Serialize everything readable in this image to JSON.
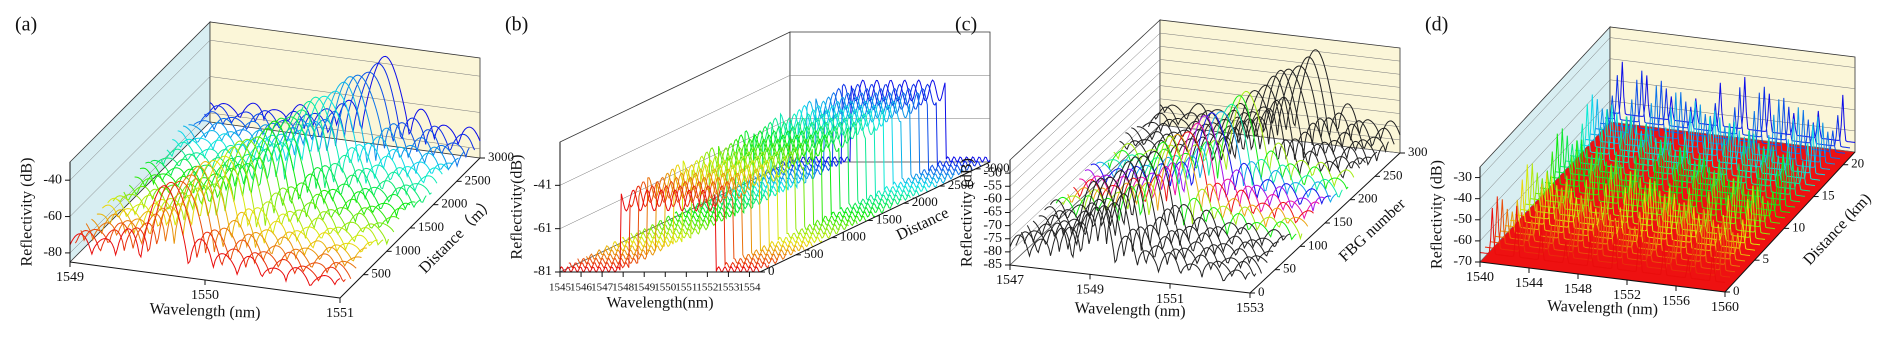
{
  "chart_data": [
    {
      "type": "waterfall3d",
      "panel_label": "(a)",
      "xlabel": "Wavelength (nm)",
      "ylabel": "Reflectivity (dB)",
      "zlabel": "Distance（m）",
      "xlim": [
        1549,
        1551
      ],
      "xticks": [
        1549,
        1550,
        1551
      ],
      "ylim": [
        -85,
        -30
      ],
      "yticks": [
        -80,
        -60,
        -40
      ],
      "zlim": [
        0,
        3000
      ],
      "zticks": [
        500,
        1000,
        1500,
        2000,
        2500,
        3000
      ]
    },
    {
      "type": "waterfall3d",
      "panel_label": "(b)",
      "xlabel": "Wavelength(nm)",
      "ylabel": "Reflectivity(dB)",
      "zlabel": "Distance",
      "xlim": [
        1545,
        1554.5
      ],
      "xticks": [
        1545,
        1546,
        1547,
        1548,
        1549,
        1550,
        1551,
        1552,
        1553,
        1554
      ],
      "ylim": [
        -81,
        -21
      ],
      "yticks": [
        -81,
        -61,
        -41
      ],
      "zlim": [
        0,
        3200
      ],
      "zticks": [
        0,
        500,
        1000,
        1500,
        2000,
        2500,
        3000
      ]
    },
    {
      "type": "waterfall3d",
      "panel_label": "(c)",
      "xlabel": "Wavelength (nm)",
      "ylabel": "Reflectivity (dB)",
      "zlabel": "FBG number",
      "xlim": [
        1547,
        1553
      ],
      "xticks": [
        1547,
        1549,
        1551,
        1553
      ],
      "ylim": [
        -85,
        -45
      ],
      "yticks": [
        -85,
        -80,
        -75,
        -70,
        -65,
        -60,
        -55,
        -50
      ],
      "zlim": [
        0,
        300
      ],
      "zticks": [
        0,
        50,
        100,
        150,
        200,
        250,
        300
      ]
    },
    {
      "type": "waterfall3d",
      "panel_label": "(d)",
      "xlabel": "Wavelength (nm)",
      "ylabel": "Reflectivity (dB)",
      "zlabel": "Distance (km)",
      "xlim": [
        1540,
        1560
      ],
      "xticks": [
        1540,
        1544,
        1548,
        1552,
        1556,
        1560
      ],
      "ylim": [
        -70,
        -25
      ],
      "yticks": [
        -70,
        -60,
        -50,
        -40,
        -30
      ],
      "zlim": [
        0,
        22
      ],
      "zticks": [
        0,
        5,
        10,
        15,
        20
      ]
    }
  ]
}
